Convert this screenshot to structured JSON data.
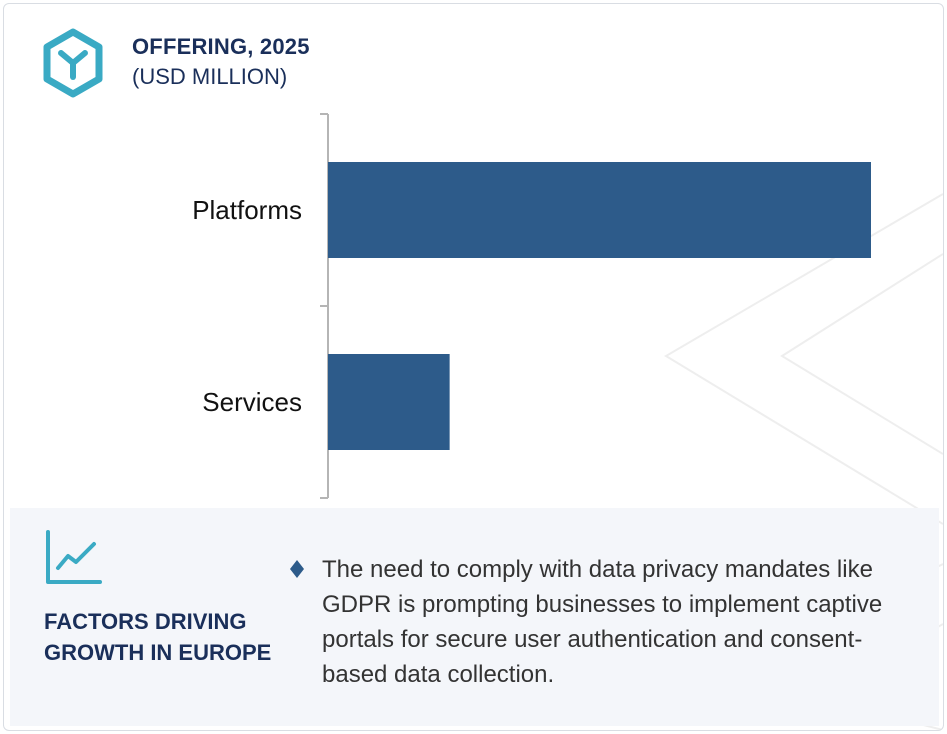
{
  "header": {
    "title": "OFFERING, 2025",
    "subtitle": "(USD MILLION)",
    "icon": "hexagon-y-icon",
    "accent_color": "#3aaac4"
  },
  "chart_data": {
    "type": "bar",
    "orientation": "horizontal",
    "title": "OFFERING, 2025",
    "subtitle": "(USD MILLION)",
    "categories": [
      "Platforms",
      "Services"
    ],
    "values": [
      100,
      22.4
    ],
    "xlabel": "",
    "ylabel": "",
    "xlim": [
      0,
      100
    ],
    "grid": false,
    "legend": "none",
    "bar_color": "#2d5b8a"
  },
  "factors": {
    "icon": "trend-line-icon",
    "title_line1": "FACTORS DRIVING",
    "title_line2": "GROWTH IN EUROPE",
    "bullets": [
      {
        "icon": "diamond-bullet-icon",
        "text": "The need to comply with data privacy mandates like GDPR is prompting businesses to implement captive portals for secure user authentication and consent-based data collection."
      }
    ]
  }
}
